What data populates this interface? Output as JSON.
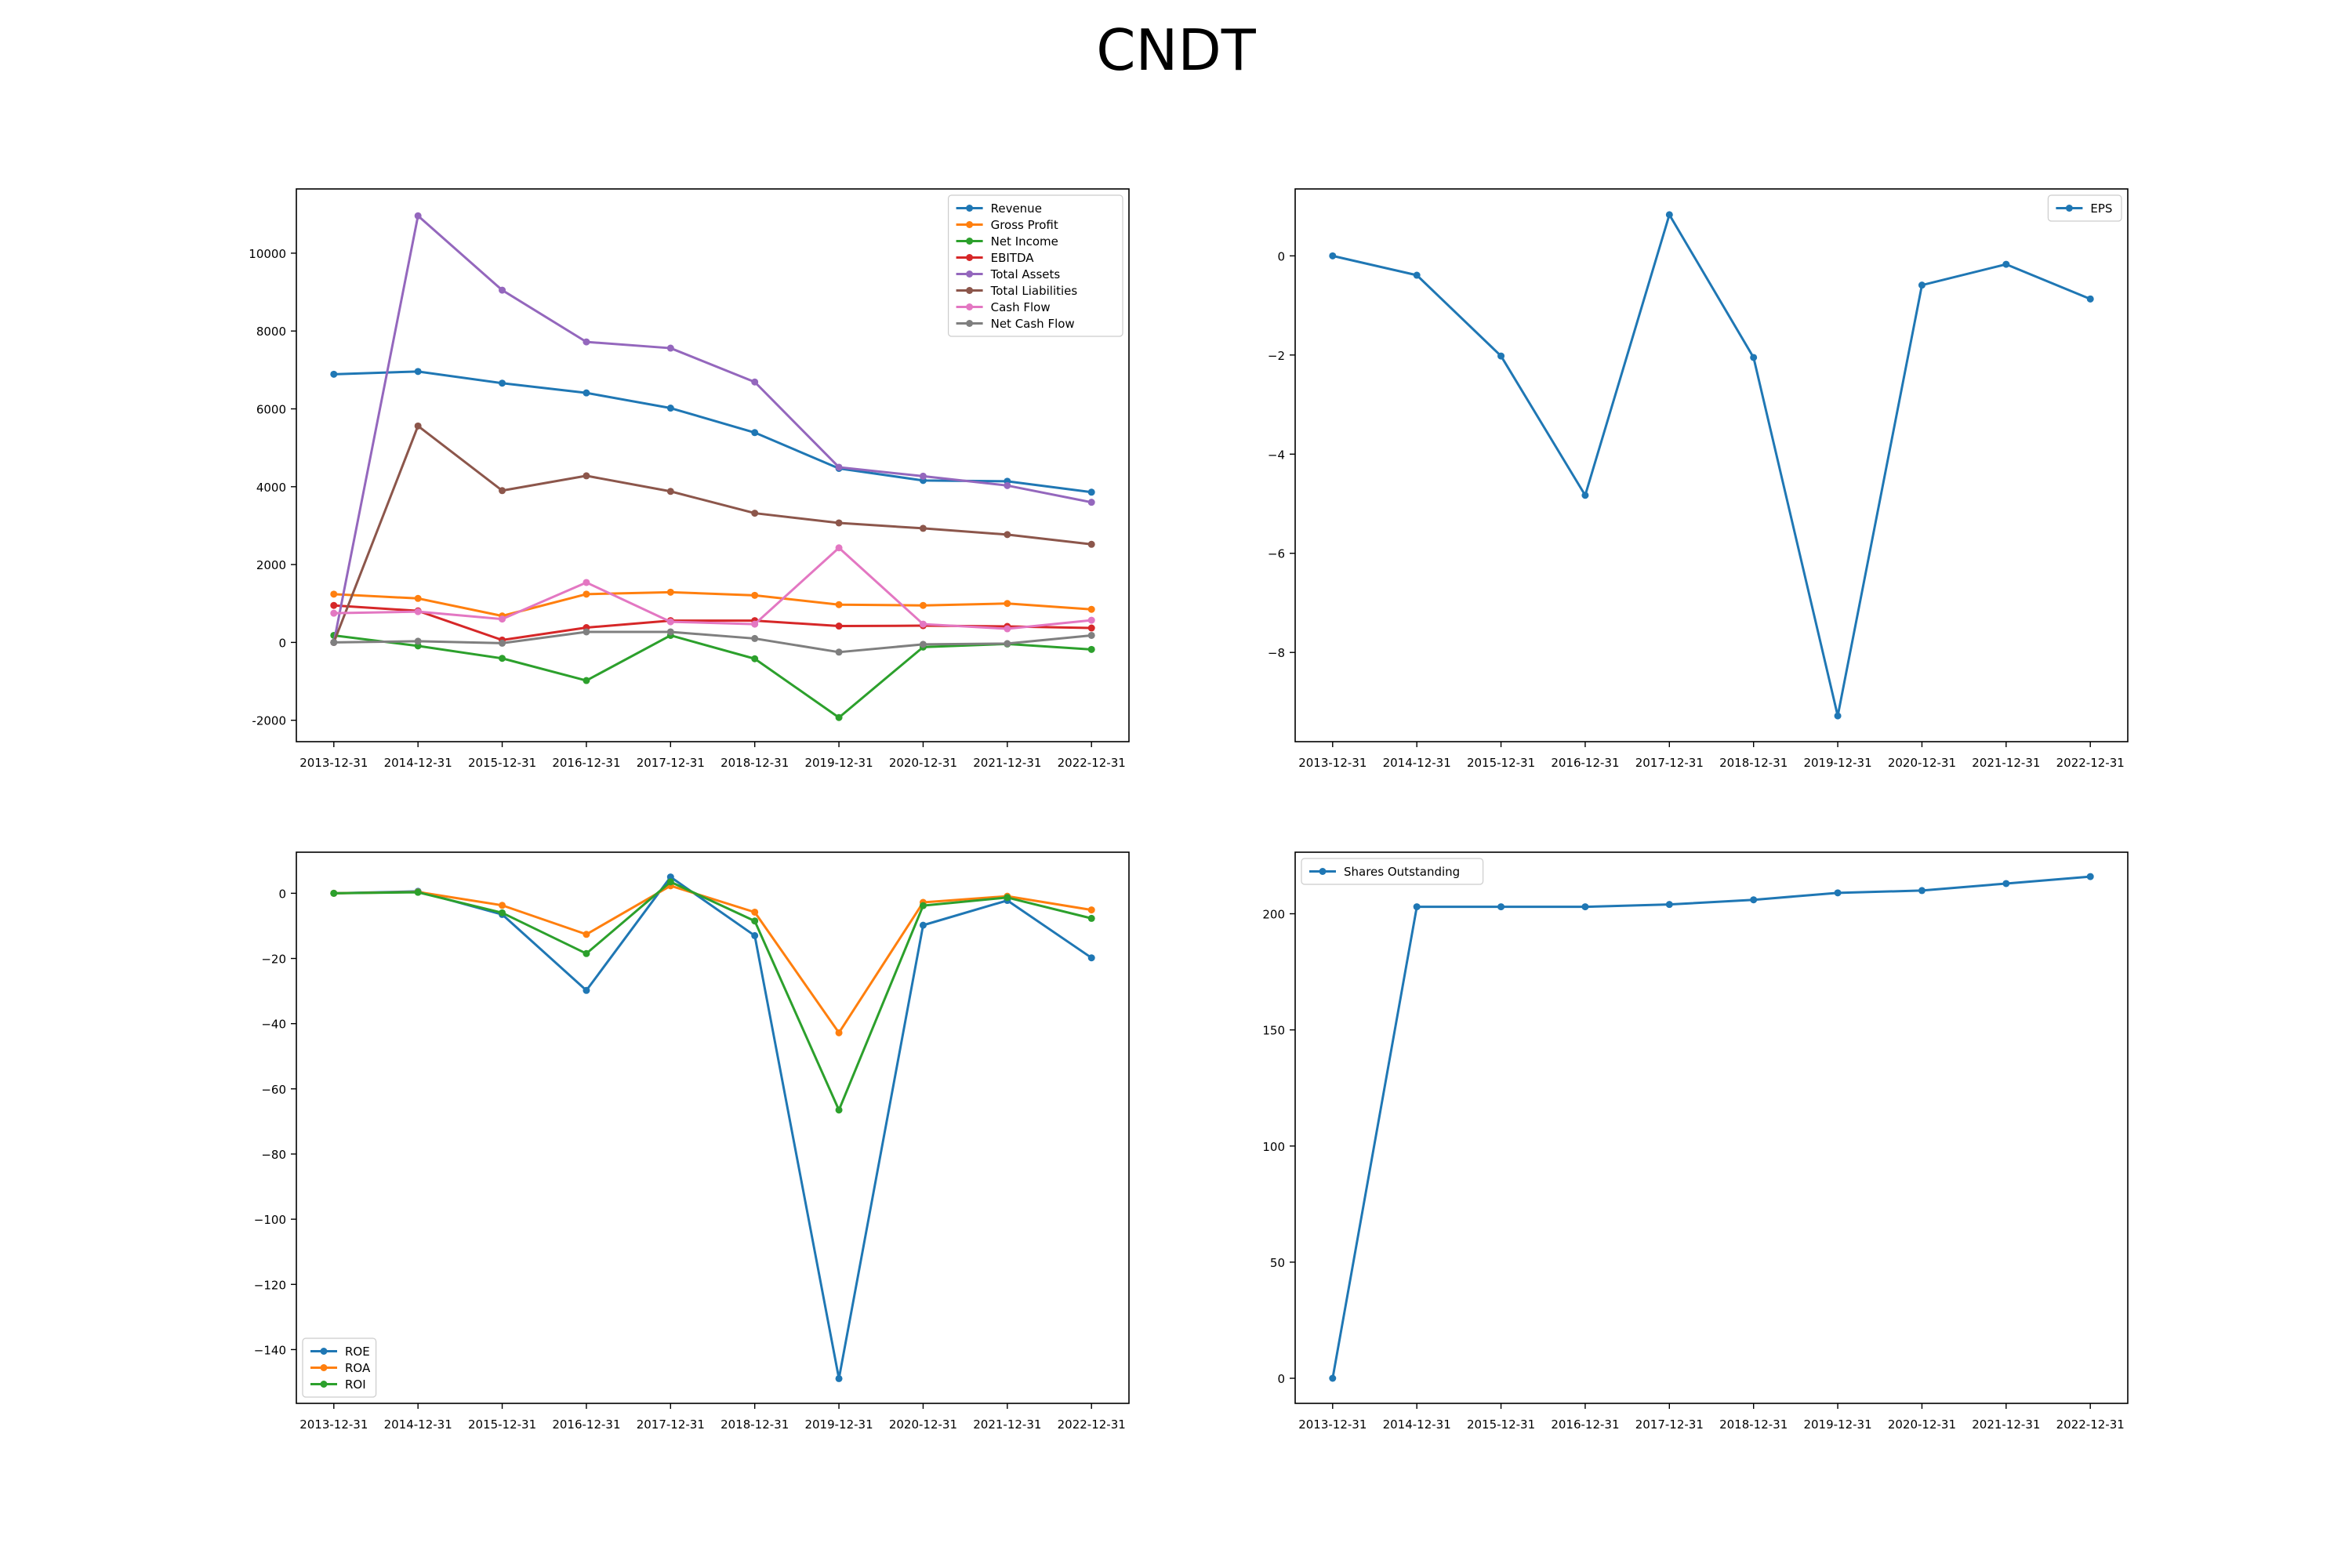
{
  "title": "CNDT",
  "chart_data": [
    {
      "type": "line",
      "categories": [
        "2013-12-31",
        "2014-12-31",
        "2015-12-31",
        "2016-12-31",
        "2017-12-31",
        "2018-12-31",
        "2019-12-31",
        "2020-12-31",
        "2021-12-31",
        "2022-12-31"
      ],
      "ylim": [
        -2550,
        11650
      ],
      "yticks": [
        -2000,
        0,
        2000,
        4000,
        6000,
        8000,
        10000
      ],
      "legend_position": "top-right",
      "series": [
        {
          "name": "Revenue",
          "color": "#1f77b4",
          "values": [
            6890,
            6960,
            6660,
            6410,
            6020,
            5390,
            4470,
            4160,
            4140,
            3860
          ]
        },
        {
          "name": "Gross Profit",
          "color": "#ff7f0e",
          "values": [
            1240,
            1130,
            680,
            1240,
            1290,
            1210,
            970,
            950,
            1000,
            850
          ]
        },
        {
          "name": "Net Income",
          "color": "#2ca02c",
          "values": [
            180,
            -90,
            -410,
            -980,
            180,
            -420,
            -1930,
            -120,
            -40,
            -180
          ]
        },
        {
          "name": "EBITDA",
          "color": "#d62728",
          "values": [
            950,
            810,
            60,
            380,
            560,
            560,
            420,
            430,
            410,
            370
          ]
        },
        {
          "name": "Total Assets",
          "color": "#9467bd",
          "values": [
            0,
            10960,
            9050,
            7720,
            7560,
            6690,
            4500,
            4270,
            4030,
            3600
          ]
        },
        {
          "name": "Total Liabilities",
          "color": "#8c564b",
          "values": [
            0,
            5560,
            3900,
            4280,
            3880,
            3320,
            3070,
            2930,
            2770,
            2520
          ]
        },
        {
          "name": "Cash Flow",
          "color": "#e377c2",
          "values": [
            750,
            790,
            600,
            1540,
            530,
            470,
            2430,
            470,
            350,
            570
          ]
        },
        {
          "name": "Net Cash Flow",
          "color": "#7f7f7f",
          "values": [
            0,
            30,
            -20,
            270,
            270,
            100,
            -250,
            -50,
            -30,
            180
          ]
        }
      ]
    },
    {
      "type": "line",
      "categories": [
        "2013-12-31",
        "2014-12-31",
        "2015-12-31",
        "2016-12-31",
        "2017-12-31",
        "2018-12-31",
        "2019-12-31",
        "2020-12-31",
        "2021-12-31",
        "2022-12-31"
      ],
      "ylim": [
        -9.8,
        1.35
      ],
      "yticks": [
        -8,
        -6,
        -4,
        -2,
        0
      ],
      "tick_labels": [
        "−8",
        "−6",
        "−4",
        "−2",
        "0"
      ],
      "legend_position": "top-right",
      "series": [
        {
          "name": "EPS",
          "color": "#1f77b4",
          "values": [
            0,
            -0.39,
            -2.02,
            -4.83,
            0.83,
            -2.05,
            -9.28,
            -0.59,
            -0.17,
            -0.87
          ]
        }
      ]
    },
    {
      "type": "line",
      "categories": [
        "2013-12-31",
        "2014-12-31",
        "2015-12-31",
        "2016-12-31",
        "2017-12-31",
        "2018-12-31",
        "2019-12-31",
        "2020-12-31",
        "2021-12-31",
        "2022-12-31"
      ],
      "ylim": [
        -156.5,
        12.6
      ],
      "yticks": [
        -140,
        -120,
        -100,
        -80,
        -60,
        -40,
        -20,
        0
      ],
      "tick_labels": [
        "−140",
        "−120",
        "−100",
        "−80",
        "−60",
        "−40",
        "−20",
        "0"
      ],
      "legend_position": "bottom-left",
      "series": [
        {
          "name": "ROE",
          "color": "#1f77b4",
          "values": [
            0,
            0.6,
            -6.5,
            -29.8,
            5.0,
            -13.0,
            -148.9,
            -9.8,
            -2.2,
            -19.8
          ]
        },
        {
          "name": "ROA",
          "color": "#ff7f0e",
          "values": [
            0,
            0.4,
            -3.7,
            -12.6,
            2.3,
            -5.8,
            -42.8,
            -2.8,
            -0.9,
            -5.1
          ]
        },
        {
          "name": "ROI",
          "color": "#2ca02c",
          "values": [
            0,
            0.3,
            -6.0,
            -18.5,
            3.5,
            -8.5,
            -66.5,
            -3.8,
            -1.3,
            -7.7
          ]
        }
      ]
    },
    {
      "type": "line",
      "categories": [
        "2013-12-31",
        "2014-12-31",
        "2015-12-31",
        "2016-12-31",
        "2017-12-31",
        "2018-12-31",
        "2019-12-31",
        "2020-12-31",
        "2021-12-31",
        "2022-12-31"
      ],
      "ylim": [
        -10.8,
        226.5
      ],
      "yticks": [
        0,
        50,
        100,
        150,
        200
      ],
      "legend_position": "top-left",
      "series": [
        {
          "name": "Shares Outstanding",
          "color": "#1f77b4",
          "values": [
            0,
            203,
            203,
            203,
            204,
            206,
            209,
            210,
            213,
            216
          ]
        }
      ]
    }
  ]
}
